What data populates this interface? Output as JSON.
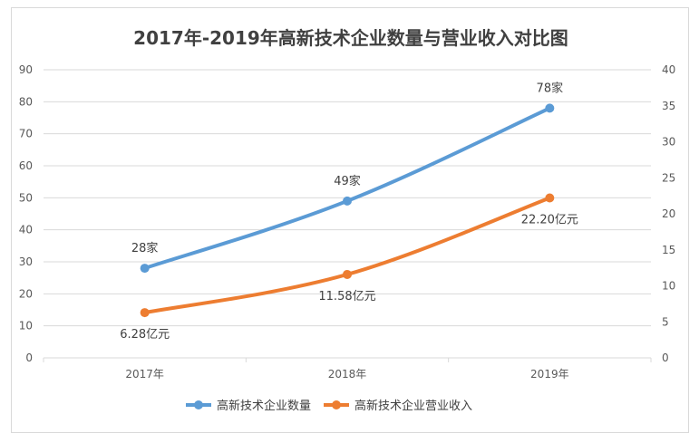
{
  "chart_data": {
    "type": "line",
    "title": "2017年-2019年高新技术企业数量与营业收入对比图",
    "categories": [
      "2017年",
      "2018年",
      "2019年"
    ],
    "y_left": {
      "min": 0,
      "max": 90,
      "step": 10,
      "ticks": [
        "0",
        "10",
        "20",
        "30",
        "40",
        "50",
        "60",
        "70",
        "80",
        "90"
      ]
    },
    "y_right": {
      "min": 0,
      "max": 40,
      "step": 5,
      "ticks": [
        "0",
        "5",
        "10",
        "15",
        "20",
        "25",
        "30",
        "35",
        "40"
      ]
    },
    "grid": true,
    "legend_position": "bottom",
    "series": [
      {
        "name": "高新技术企业数量",
        "axis": "left",
        "color": "#5b9bd5",
        "values": [
          28,
          49,
          78
        ],
        "labels": [
          "28家",
          "49家",
          "78家"
        ],
        "label_position": "above"
      },
      {
        "name": "高新技术企业营业收入",
        "axis": "right",
        "color": "#ed7d31",
        "values": [
          6.28,
          11.58,
          22.2
        ],
        "labels": [
          "6.28亿元",
          "11.58亿元",
          "22.20亿元"
        ],
        "label_position": "below"
      }
    ]
  }
}
